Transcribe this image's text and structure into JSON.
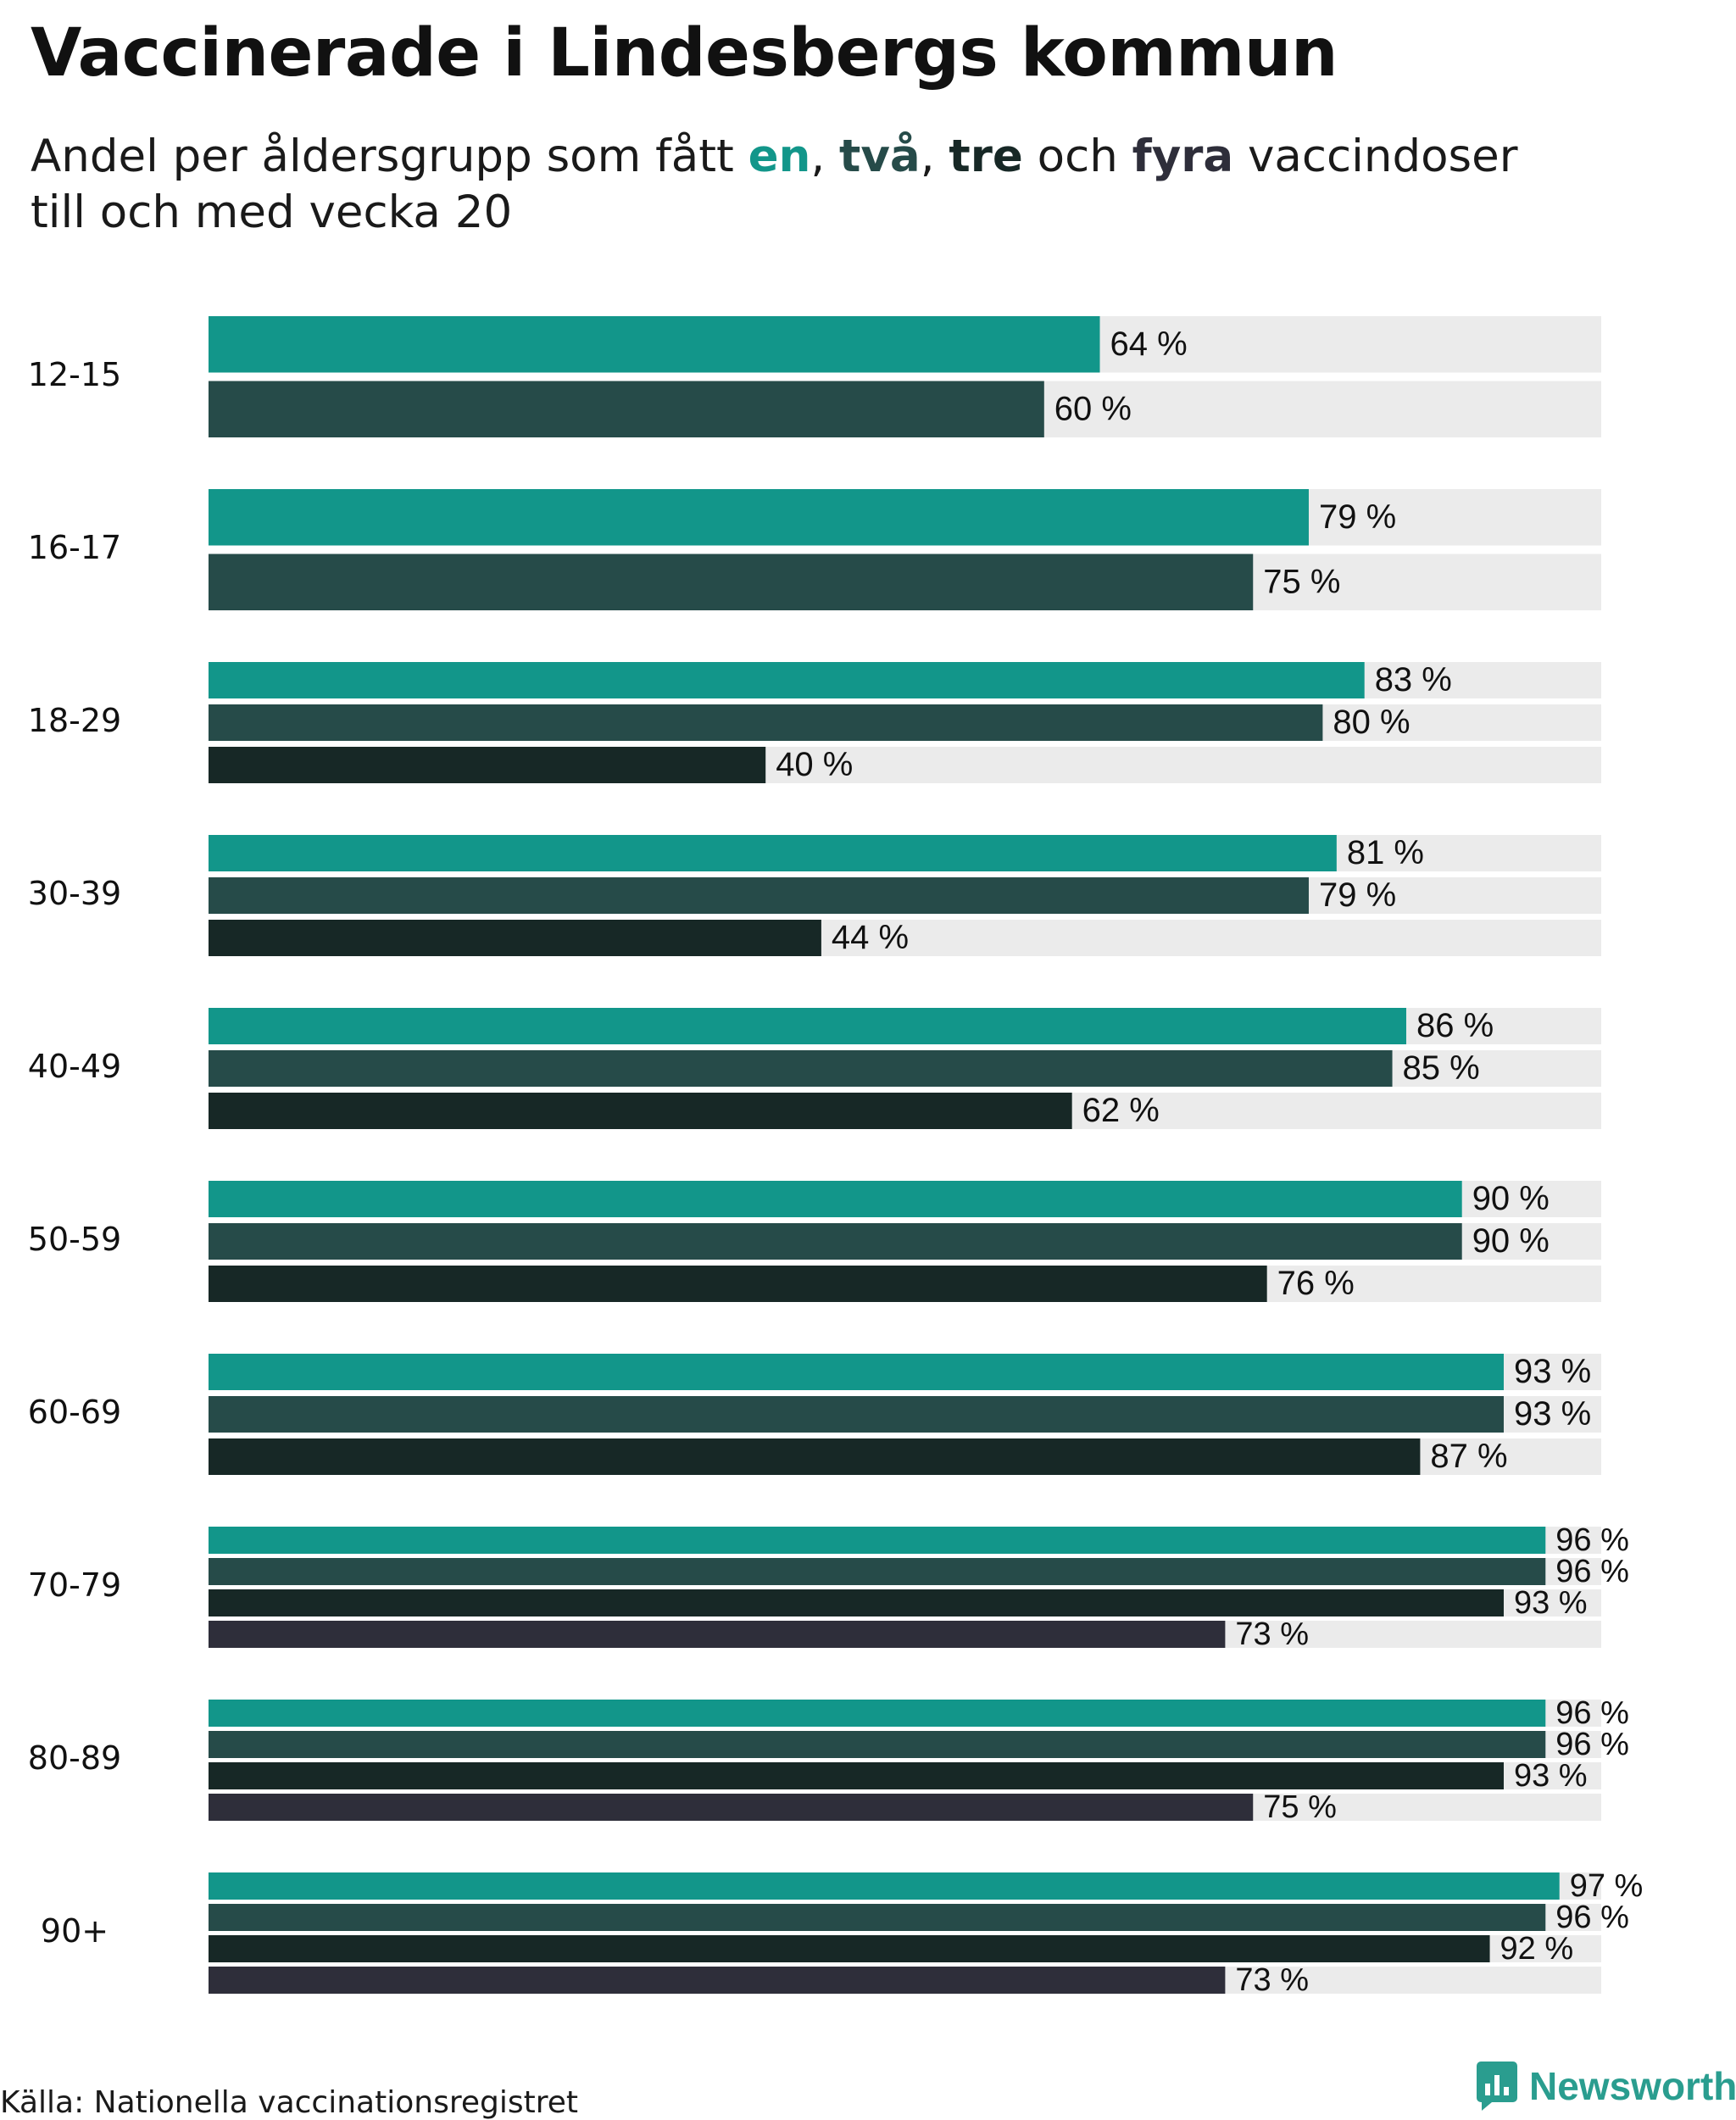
{
  "title": "Vaccinerade i Lindesbergs kommun",
  "subtitle": {
    "prefix": "Andel per åldersgrupp som fått ",
    "w1": "en",
    "sep1": ", ",
    "w2": "två",
    "sep2": ", ",
    "w3": "tre",
    "mid": " och ",
    "w4": "fyra",
    "suffix": " vaccindoser",
    "line2": "till och med vecka 20"
  },
  "source": "Källa: Nationella vaccinationsregistret",
  "brand": "Newsworthy",
  "colors": {
    "en": "#12968a",
    "tva": "#264b49",
    "tre": "#172826",
    "fyra": "#2e2e3a",
    "track": "#ebebeb",
    "brand": "#2a9d8f"
  },
  "chart_data": {
    "type": "bar",
    "orientation": "horizontal",
    "xlim": [
      0,
      100
    ],
    "unit": " %",
    "categories": [
      "12-15",
      "16-17",
      "18-29",
      "30-39",
      "40-49",
      "50-59",
      "60-69",
      "70-79",
      "80-89",
      "90+"
    ],
    "series": [
      {
        "name": "en",
        "values": [
          64,
          79,
          83,
          81,
          86,
          90,
          93,
          96,
          96,
          97
        ]
      },
      {
        "name": "två",
        "values": [
          60,
          75,
          80,
          79,
          85,
          90,
          93,
          96,
          96,
          96
        ]
      },
      {
        "name": "tre",
        "values": [
          null,
          null,
          40,
          44,
          62,
          76,
          87,
          93,
          93,
          92
        ]
      },
      {
        "name": "fyra",
        "values": [
          null,
          null,
          null,
          null,
          null,
          null,
          null,
          73,
          75,
          73
        ]
      }
    ]
  }
}
